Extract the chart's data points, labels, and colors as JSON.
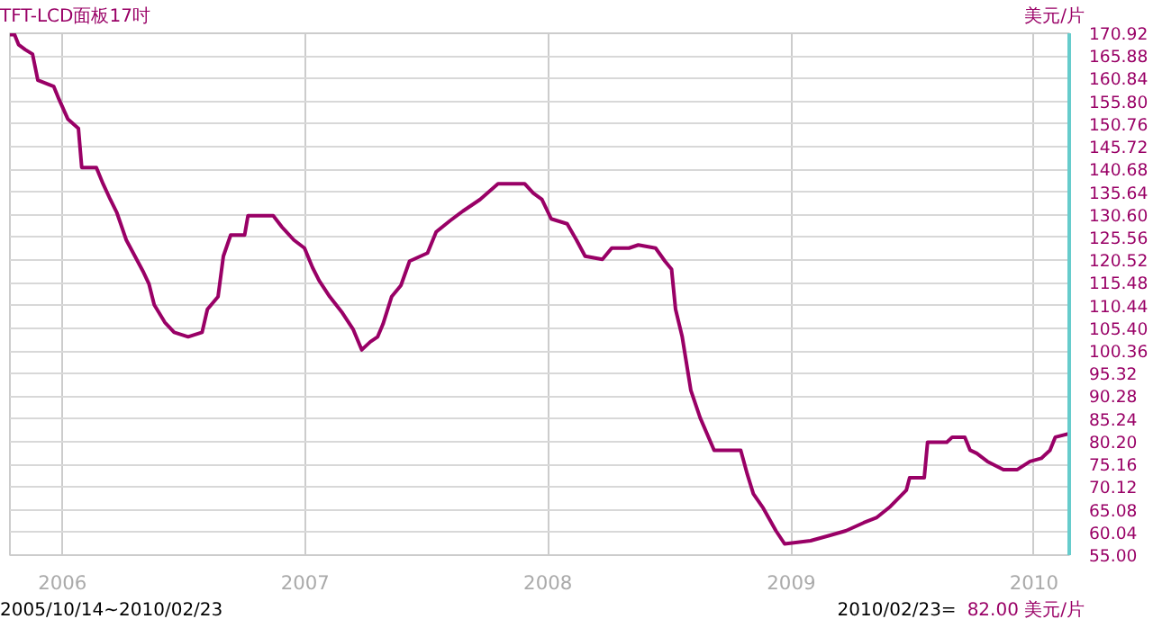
{
  "chart_data": {
    "type": "line",
    "title": "TFT-LCD面板17吋",
    "ylabel": "美元/片",
    "annotations": [
      "2005/10/14~2010/02/23",
      "2010/02/23=",
      "82.00 美元/片"
    ],
    "x": [
      "2005-10-14",
      "2005-10-21",
      "2005-10-27",
      "2005-11-06",
      "2005-11-17",
      "2005-11-25",
      "2005-12-19",
      "2005-12-27",
      "2006-01-09",
      "2006-01-25",
      "2006-01-30",
      "2006-02-21",
      "2006-03-03",
      "2006-03-14",
      "2006-03-24",
      "2006-04-07",
      "2006-04-20",
      "2006-05-03",
      "2006-05-11",
      "2006-05-19",
      "2006-06-04",
      "2006-06-18",
      "2006-07-09",
      "2006-07-30",
      "2006-08-07",
      "2006-08-23",
      "2006-08-31",
      "2006-09-11",
      "2006-10-02",
      "2006-10-07",
      "2006-11-14",
      "2006-11-27",
      "2006-12-15",
      "2006-12-31",
      "2007-01-12",
      "2007-01-22",
      "2007-02-07",
      "2007-02-26",
      "2007-03-14",
      "2007-03-27",
      "2007-04-09",
      "2007-04-20",
      "2007-04-28",
      "2007-05-11",
      "2007-05-25",
      "2007-06-07",
      "2007-07-04",
      "2007-07-17",
      "2007-08-07",
      "2007-08-26",
      "2007-09-21",
      "2007-10-18",
      "2007-11-27",
      "2007-12-10",
      "2007-12-23",
      "2008-01-06",
      "2008-01-30",
      "2008-02-13",
      "2008-02-26",
      "2008-03-23",
      "2008-04-06",
      "2008-05-02",
      "2008-05-16",
      "2008-06-11",
      "2008-06-25",
      "2008-07-05",
      "2008-07-11",
      "2008-07-21",
      "2008-08-03",
      "2008-08-17",
      "2008-09-07",
      "2008-10-17",
      "2008-10-27",
      "2008-11-05",
      "2008-11-20",
      "2008-12-09",
      "2008-12-22",
      "2009-01-30",
      "2009-02-26",
      "2009-03-24",
      "2009-04-20",
      "2009-05-09",
      "2009-05-30",
      "2009-06-23",
      "2009-06-28",
      "2009-07-20",
      "2009-07-25",
      "2009-08-23",
      "2009-08-31",
      "2009-09-19",
      "2009-09-27",
      "2009-10-07",
      "2009-10-23",
      "2009-11-16",
      "2009-12-07",
      "2009-12-26",
      "2010-01-12",
      "2010-01-25",
      "2010-02-02",
      "2010-02-23"
    ],
    "series": [
      {
        "color": "#990066",
        "values": [
          170.6,
          170.6,
          168.4,
          167.3,
          166.3,
          160.5,
          159.1,
          156.2,
          151.9,
          149.8,
          141.1,
          141.1,
          137.5,
          134,
          131,
          125,
          121.4,
          117.8,
          115.3,
          110.6,
          106.7,
          104.5,
          103.5,
          104.5,
          109.6,
          112.4,
          121.4,
          126.1,
          126.1,
          130.4,
          130.4,
          127.9,
          125,
          123.2,
          118.9,
          116,
          112.4,
          108.8,
          105.2,
          100.6,
          102.4,
          103.5,
          106.3,
          112.4,
          114.9,
          120.3,
          122.1,
          126.8,
          129.3,
          131.4,
          134,
          137.5,
          137.5,
          135.4,
          134,
          129.7,
          128.6,
          125,
          121.4,
          120.7,
          123.2,
          123.2,
          123.9,
          123.2,
          120.3,
          118.5,
          109.6,
          103.5,
          91.6,
          85.5,
          78.3,
          78.3,
          72.9,
          68.6,
          65.4,
          60.4,
          57.5,
          58.2,
          59.3,
          60.4,
          62.2,
          63.3,
          65.8,
          69.4,
          72.2,
          72.2,
          80.1,
          80.1,
          81.2,
          81.2,
          78.3,
          77.6,
          75.8,
          74.0,
          74.0,
          75.8,
          76.5,
          78.3,
          81.2,
          82.0
        ]
      }
    ],
    "xlim": [
      "2005-10-14",
      "2010-02-23"
    ],
    "xticks": [
      "2006",
      "2007",
      "2008",
      "2009",
      "2010"
    ],
    "ylim": [
      55,
      170.92
    ],
    "yticks": [
      {
        "value": 55,
        "label": "55.00"
      },
      60.04,
      65.08,
      70.12,
      75.16,
      {
        "value": 80.2,
        "label": "80.20"
      },
      85.24,
      90.28,
      95.32,
      100.36,
      {
        "value": 105.4,
        "label": "105.40"
      },
      110.44,
      115.48,
      120.52,
      125.56,
      {
        "value": 130.6,
        "label": "130.60"
      },
      135.64,
      140.68,
      145.72,
      150.76,
      {
        "value": 155.8,
        "label": "155.80"
      },
      160.84,
      165.88,
      170.92
    ],
    "grid": true,
    "marker": "none",
    "line_style": "solid"
  }
}
